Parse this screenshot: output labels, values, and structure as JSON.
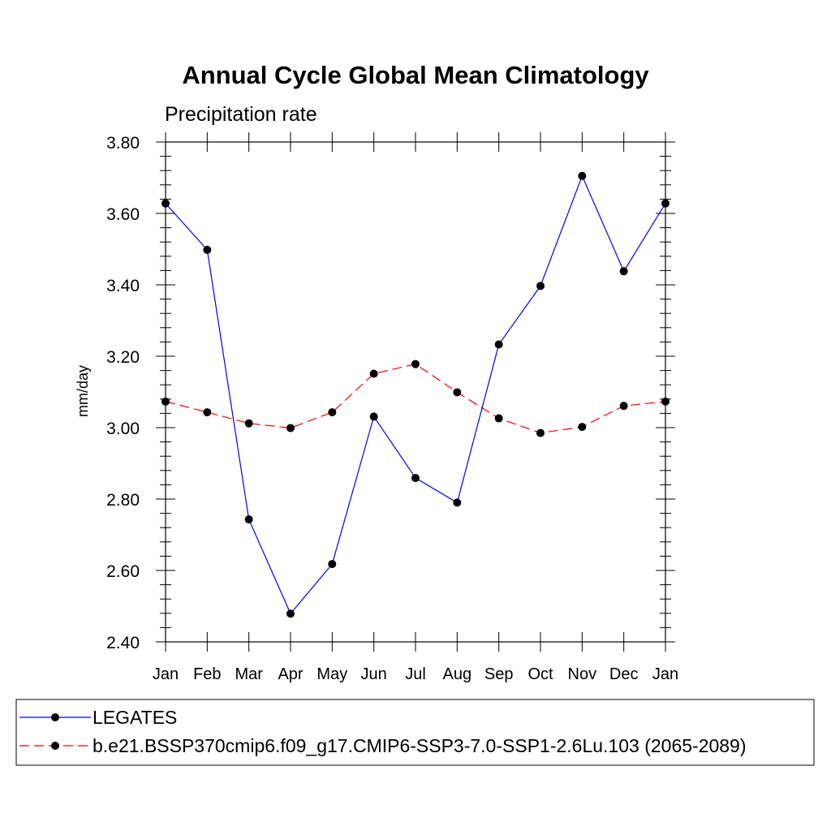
{
  "chart_data": {
    "type": "line",
    "title": "Annual Cycle Global Mean Climatology",
    "subtitle": "Precipitation rate",
    "xlabel": "",
    "ylabel": "mm/day",
    "categories": [
      "Jan",
      "Feb",
      "Mar",
      "Apr",
      "May",
      "Jun",
      "Jul",
      "Aug",
      "Sep",
      "Oct",
      "Nov",
      "Dec",
      "Jan"
    ],
    "ylim": [
      2.4,
      3.8
    ],
    "yticks": [
      "2.40",
      "2.60",
      "2.80",
      "3.00",
      "3.20",
      "3.40",
      "3.60",
      "3.80"
    ],
    "grid": false,
    "legend_position": "bottom",
    "series": [
      {
        "name": "LEGATES",
        "color": "#0000ff",
        "line_style": "solid",
        "values": [
          3.628,
          3.498,
          2.743,
          2.479,
          2.618,
          3.031,
          2.859,
          2.79,
          3.233,
          3.397,
          3.705,
          3.438,
          3.628
        ]
      },
      {
        "name": "b.e21.BSSP370cmip6.f09_g17.CMIP6-SSP3-7.0-SSP1-2.6Lu.103 (2065-2089)",
        "color": "#ff0000",
        "line_style": "dashed",
        "values": [
          3.073,
          3.043,
          3.012,
          2.999,
          3.043,
          3.151,
          3.178,
          3.099,
          3.026,
          2.985,
          3.002,
          3.061,
          3.073
        ]
      }
    ]
  }
}
